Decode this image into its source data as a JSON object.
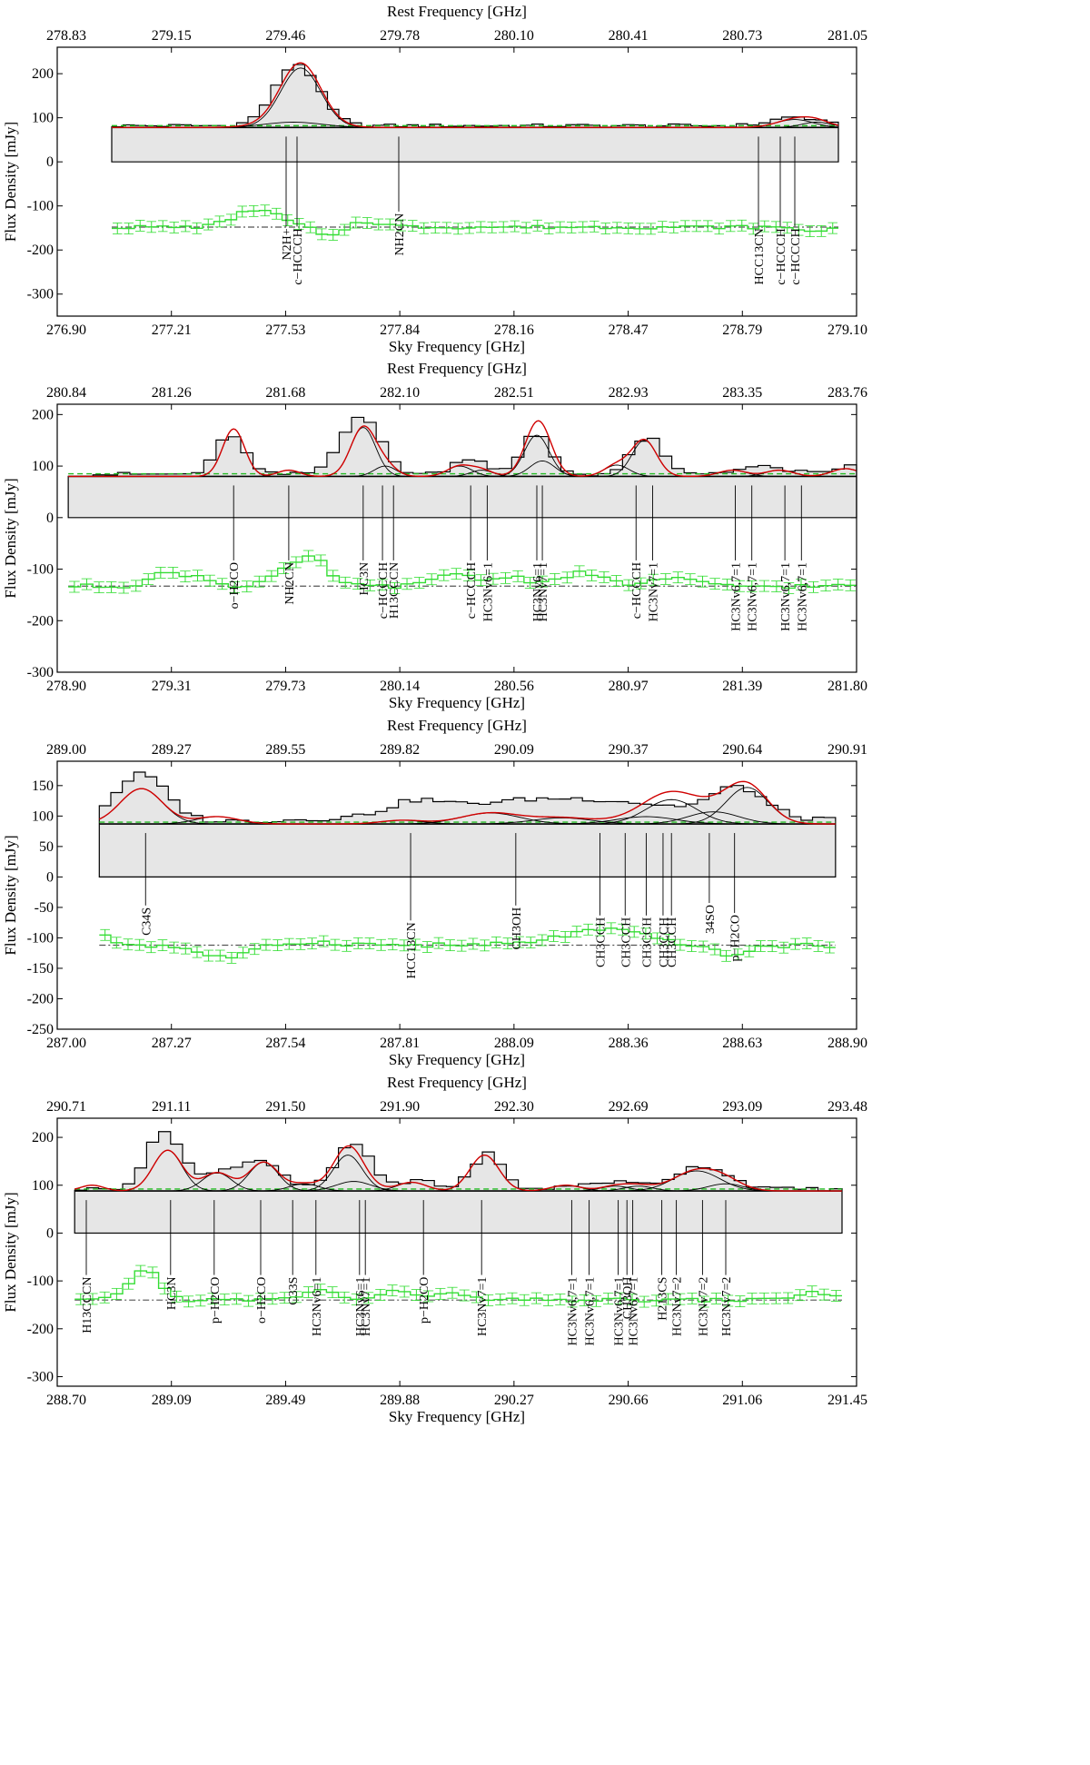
{
  "figure": {
    "top_axis_label": "Rest Frequency [GHz]",
    "bottom_axis_label": "Sky Frequency [GHz]",
    "y_axis_label": "Flux Density [mJy]"
  },
  "colors": {
    "observed": "#000000",
    "fill": "#e6e6e6",
    "total_model": "#d00000",
    "components": "#000000",
    "continuum_dashed": "#22bb22",
    "residuals": "#33dd33",
    "zero_line": "#555555",
    "markers": "#000000"
  },
  "chart_data": [
    {
      "type": "line",
      "title": "",
      "rest_ticks": [
        "278.83",
        "279.15",
        "279.46",
        "279.78",
        "280.10",
        "280.41",
        "280.73",
        "281.05"
      ],
      "sky_ticks": [
        "276.90",
        "277.21",
        "277.53",
        "277.84",
        "278.16",
        "278.47",
        "278.79",
        "279.10"
      ],
      "xlim": [
        276.9,
        279.1
      ],
      "ylim": [
        -350,
        260
      ],
      "yticks": [
        200,
        100,
        0,
        -100,
        -200,
        -300
      ],
      "data_range": [
        277.05,
        279.05
      ],
      "continuum": 78,
      "continuum_dashed": 82,
      "residual_level": -148,
      "components": [
        {
          "center": 277.57,
          "amp": 135,
          "sigma": 0.055
        },
        {
          "center": 277.55,
          "amp": 12,
          "sigma": 0.08
        },
        {
          "center": 278.93,
          "amp": 18,
          "sigma": 0.05
        },
        {
          "center": 278.99,
          "amp": 12,
          "sigma": 0.04
        }
      ],
      "observed_peaks": [
        {
          "center": 277.56,
          "amp": 140,
          "sigma": 0.06
        },
        {
          "center": 278.93,
          "amp": 20,
          "sigma": 0.06
        }
      ],
      "residual_bumps": [
        {
          "center": 277.45,
          "amp": 40,
          "sigma": 0.06
        },
        {
          "center": 277.65,
          "amp": -25,
          "sigma": 0.03
        },
        {
          "center": 277.75,
          "amp": 12,
          "sigma": 0.05
        },
        {
          "center": 278.98,
          "amp": -8,
          "sigma": 0.05
        }
      ],
      "lines": [
        {
          "freq": 277.53,
          "label": "N2H+",
          "len": 180
        },
        {
          "freq": 277.56,
          "label": "c−HCCCH",
          "len": 180
        },
        {
          "freq": 277.84,
          "label": "NH2CN",
          "len": 150
        },
        {
          "freq": 278.83,
          "label": "HCC13CN",
          "len": 180
        },
        {
          "freq": 278.89,
          "label": "c−HCCCH",
          "len": 180
        },
        {
          "freq": 278.93,
          "label": "c−HCCCH",
          "len": 180
        }
      ]
    },
    {
      "type": "line",
      "title": "",
      "rest_ticks": [
        "280.84",
        "281.26",
        "281.68",
        "282.10",
        "282.51",
        "282.93",
        "283.35",
        "283.76"
      ],
      "sky_ticks": [
        "278.90",
        "279.31",
        "279.73",
        "280.14",
        "280.56",
        "280.97",
        "281.39",
        "281.80"
      ],
      "xlim": [
        278.9,
        281.8
      ],
      "ylim": [
        -300,
        220
      ],
      "yticks": [
        200,
        100,
        0,
        -100,
        -200,
        -300
      ],
      "data_range": [
        278.94,
        281.8
      ],
      "continuum": 80,
      "continuum_dashed": 85,
      "residual_level": -133,
      "components": [
        {
          "center": 279.54,
          "amp": 92,
          "sigma": 0.04
        },
        {
          "center": 279.74,
          "amp": 12,
          "sigma": 0.04
        },
        {
          "center": 280.01,
          "amp": 95,
          "sigma": 0.045
        },
        {
          "center": 280.09,
          "amp": 20,
          "sigma": 0.04
        },
        {
          "center": 280.36,
          "amp": 20,
          "sigma": 0.045
        },
        {
          "center": 280.44,
          "amp": 12,
          "sigma": 0.04
        },
        {
          "center": 280.64,
          "amp": 80,
          "sigma": 0.045
        },
        {
          "center": 280.66,
          "amp": 30,
          "sigma": 0.045
        },
        {
          "center": 280.93,
          "amp": 22,
          "sigma": 0.045
        },
        {
          "center": 281.03,
          "amp": 70,
          "sigma": 0.045
        },
        {
          "center": 281.35,
          "amp": 12,
          "sigma": 0.05
        },
        {
          "center": 281.52,
          "amp": 12,
          "sigma": 0.05
        },
        {
          "center": 281.76,
          "amp": 15,
          "sigma": 0.05
        }
      ],
      "observed_peaks": [
        {
          "center": 279.53,
          "amp": 78,
          "sigma": 0.05
        },
        {
          "center": 280.0,
          "amp": 115,
          "sigma": 0.07
        },
        {
          "center": 280.4,
          "amp": 32,
          "sigma": 0.06
        },
        {
          "center": 280.64,
          "amp": 80,
          "sigma": 0.05
        },
        {
          "center": 281.04,
          "amp": 72,
          "sigma": 0.055
        },
        {
          "center": 281.45,
          "amp": 14,
          "sigma": 0.1
        },
        {
          "center": 281.78,
          "amp": 20,
          "sigma": 0.04
        }
      ],
      "residual_bumps": [
        {
          "center": 279.3,
          "amp": 25,
          "sigma": 0.06
        },
        {
          "center": 279.42,
          "amp": 15,
          "sigma": 0.05
        },
        {
          "center": 279.82,
          "amp": 55,
          "sigma": 0.06
        },
        {
          "center": 279.7,
          "amp": 18,
          "sigma": 0.05
        },
        {
          "center": 280.35,
          "amp": 25,
          "sigma": 0.07
        },
        {
          "center": 280.55,
          "amp": 20,
          "sigma": 0.05
        },
        {
          "center": 280.8,
          "amp": 25,
          "sigma": 0.08
        },
        {
          "center": 281.13,
          "amp": 15,
          "sigma": 0.08
        }
      ],
      "lines": [
        {
          "freq": 279.54,
          "label": "o−H2CO",
          "len": 150
        },
        {
          "freq": 279.74,
          "label": "NH2CN",
          "len": 150
        },
        {
          "freq": 280.01,
          "label": "HC3N",
          "len": 150
        },
        {
          "freq": 280.08,
          "label": "c−HCCCH",
          "len": 150
        },
        {
          "freq": 280.12,
          "label": "H13CCCN",
          "len": 150
        },
        {
          "freq": 280.4,
          "label": "c−HCCCH",
          "len": 150
        },
        {
          "freq": 280.46,
          "label": "HC3Nv6=1",
          "len": 150
        },
        {
          "freq": 280.64,
          "label": "HC3Nv6=1",
          "len": 150
        },
        {
          "freq": 280.66,
          "label": "HC3Nv7=1",
          "len": 150
        },
        {
          "freq": 281.0,
          "label": "c−HCCCH",
          "len": 150
        },
        {
          "freq": 281.06,
          "label": "HC3Nv7=1",
          "len": 150
        },
        {
          "freq": 281.36,
          "label": "HC3Nv6,7=1",
          "len": 150
        },
        {
          "freq": 281.42,
          "label": "HC3Nv6,7=1",
          "len": 150
        },
        {
          "freq": 281.54,
          "label": "HC3Nv6,7=1",
          "len": 150
        },
        {
          "freq": 281.6,
          "label": "HC3Nv6,7=1",
          "len": 150
        }
      ]
    },
    {
      "type": "line",
      "title": "",
      "rest_ticks": [
        "289.00",
        "289.27",
        "289.55",
        "289.82",
        "290.09",
        "290.37",
        "290.64",
        "290.91"
      ],
      "sky_ticks": [
        "287.00",
        "287.27",
        "287.54",
        "287.81",
        "288.09",
        "288.36",
        "288.63",
        "288.90"
      ],
      "xlim": [
        287.0,
        288.9
      ],
      "ylim": [
        -250,
        190
      ],
      "yticks": [
        150,
        100,
        50,
        0,
        -50,
        -100,
        -150,
        -200,
        -250
      ],
      "data_range": [
        287.1,
        288.85
      ],
      "continuum": 87,
      "continuum_dashed": 90,
      "residual_level": -112,
      "components": [
        {
          "center": 287.2,
          "amp": 58,
          "sigma": 0.05
        },
        {
          "center": 287.38,
          "amp": 12,
          "sigma": 0.05
        },
        {
          "center": 288.03,
          "amp": 18,
          "sigma": 0.07
        },
        {
          "center": 288.2,
          "amp": 10,
          "sigma": 0.07
        },
        {
          "center": 288.4,
          "amp": 12,
          "sigma": 0.07
        },
        {
          "center": 288.46,
          "amp": 40,
          "sigma": 0.06
        },
        {
          "center": 288.56,
          "amp": 20,
          "sigma": 0.06
        },
        {
          "center": 288.64,
          "amp": 60,
          "sigma": 0.05
        },
        {
          "center": 287.82,
          "amp": 6,
          "sigma": 0.05
        }
      ],
      "observed_peaks": [
        {
          "center": 287.2,
          "amp": 78,
          "sigma": 0.06
        },
        {
          "center": 288.2,
          "amp": 38,
          "sigma": 0.28
        },
        {
          "center": 288.62,
          "amp": 45,
          "sigma": 0.06
        },
        {
          "center": 287.85,
          "amp": 18,
          "sigma": 0.06
        }
      ],
      "residual_bumps": [
        {
          "center": 287.05,
          "amp": 30,
          "sigma": 0.05
        },
        {
          "center": 287.4,
          "amp": -20,
          "sigma": 0.06
        },
        {
          "center": 287.6,
          "amp": 5,
          "sigma": 0.08
        },
        {
          "center": 288.3,
          "amp": 25,
          "sigma": 0.1
        },
        {
          "center": 288.6,
          "amp": -15,
          "sigma": 0.05
        }
      ],
      "lines": [
        {
          "freq": 287.21,
          "label": "C34S",
          "len": 145
        },
        {
          "freq": 287.84,
          "label": "HCC13CN",
          "len": 175
        },
        {
          "freq": 288.09,
          "label": "CH3OH",
          "len": 145
        },
        {
          "freq": 288.29,
          "label": "CH3CCH",
          "len": 165
        },
        {
          "freq": 288.35,
          "label": "CH3CCH",
          "len": 165
        },
        {
          "freq": 288.4,
          "label": "CH3CCH",
          "len": 165
        },
        {
          "freq": 288.44,
          "label": "CH3CCH",
          "len": 165
        },
        {
          "freq": 288.46,
          "label": "CH3CCH",
          "len": 165
        },
        {
          "freq": 288.55,
          "label": "34SO",
          "len": 140
        },
        {
          "freq": 288.61,
          "label": "p−H2CO",
          "len": 160
        }
      ]
    },
    {
      "type": "line",
      "title": "",
      "rest_ticks": [
        "290.71",
        "291.11",
        "291.50",
        "291.90",
        "292.30",
        "292.69",
        "293.09",
        "293.48"
      ],
      "sky_ticks": [
        "288.70",
        "289.09",
        "289.49",
        "289.88",
        "290.27",
        "290.66",
        "291.06",
        "291.45"
      ],
      "xlim": [
        288.7,
        291.45
      ],
      "ylim": [
        -320,
        240
      ],
      "yticks": [
        200,
        100,
        0,
        -100,
        -200,
        -300
      ],
      "data_range": [
        288.76,
        291.4
      ],
      "continuum": 88,
      "continuum_dashed": 92,
      "residual_level": -140,
      "components": [
        {
          "center": 288.82,
          "amp": 12,
          "sigma": 0.04
        },
        {
          "center": 289.08,
          "amp": 85,
          "sigma": 0.05
        },
        {
          "center": 289.25,
          "amp": 38,
          "sigma": 0.05
        },
        {
          "center": 289.41,
          "amp": 60,
          "sigma": 0.05
        },
        {
          "center": 289.55,
          "amp": 15,
          "sigma": 0.05
        },
        {
          "center": 289.7,
          "amp": 75,
          "sigma": 0.05
        },
        {
          "center": 289.72,
          "amp": 20,
          "sigma": 0.06
        },
        {
          "center": 289.92,
          "amp": 18,
          "sigma": 0.05
        },
        {
          "center": 290.17,
          "amp": 75,
          "sigma": 0.05
        },
        {
          "center": 290.45,
          "amp": 12,
          "sigma": 0.05
        },
        {
          "center": 290.62,
          "amp": 10,
          "sigma": 0.05
        },
        {
          "center": 290.7,
          "amp": 10,
          "sigma": 0.05
        },
        {
          "center": 290.9,
          "amp": 42,
          "sigma": 0.08
        },
        {
          "center": 291.0,
          "amp": 15,
          "sigma": 0.06
        }
      ],
      "observed_peaks": [
        {
          "center": 289.07,
          "amp": 120,
          "sigma": 0.06
        },
        {
          "center": 289.3,
          "amp": 40,
          "sigma": 0.08
        },
        {
          "center": 289.42,
          "amp": 45,
          "sigma": 0.06
        },
        {
          "center": 289.72,
          "amp": 95,
          "sigma": 0.06
        },
        {
          "center": 289.95,
          "amp": 20,
          "sigma": 0.05
        },
        {
          "center": 290.18,
          "amp": 75,
          "sigma": 0.05
        },
        {
          "center": 290.6,
          "amp": 15,
          "sigma": 0.1
        },
        {
          "center": 290.92,
          "amp": 48,
          "sigma": 0.09
        }
      ],
      "residual_bumps": [
        {
          "center": 289.0,
          "amp": 65,
          "sigma": 0.05
        },
        {
          "center": 289.6,
          "amp": 20,
          "sigma": 0.06
        },
        {
          "center": 289.88,
          "amp": 18,
          "sigma": 0.06
        },
        {
          "center": 290.05,
          "amp": 12,
          "sigma": 0.06
        },
        {
          "center": 291.3,
          "amp": 15,
          "sigma": 0.07
        }
      ],
      "lines": [
        {
          "freq": 288.8,
          "label": "H13CCCN",
          "len": 150
        },
        {
          "freq": 289.09,
          "label": "HC3N",
          "len": 150
        },
        {
          "freq": 289.24,
          "label": "p−H2CO",
          "len": 150
        },
        {
          "freq": 289.4,
          "label": "o−H2CO",
          "len": 150
        },
        {
          "freq": 289.51,
          "label": "C33S",
          "len": 150
        },
        {
          "freq": 289.59,
          "label": "HC3Nv6=1",
          "len": 150
        },
        {
          "freq": 289.74,
          "label": "HC3Nv6=1",
          "len": 150
        },
        {
          "freq": 289.76,
          "label": "HC3Nv7=1",
          "len": 150
        },
        {
          "freq": 289.96,
          "label": "p−H2CO",
          "len": 150
        },
        {
          "freq": 290.16,
          "label": "HC3Nv7=1",
          "len": 150
        },
        {
          "freq": 290.47,
          "label": "HC3Nv6,7=1",
          "len": 150
        },
        {
          "freq": 290.53,
          "label": "HC3Nv6,7=1",
          "len": 150
        },
        {
          "freq": 290.63,
          "label": "HC3Nv6,7=1",
          "len": 150
        },
        {
          "freq": 290.66,
          "label": "CH3OH",
          "len": 150
        },
        {
          "freq": 290.68,
          "label": "HC3Nv6,7=1",
          "len": 150
        },
        {
          "freq": 290.78,
          "label": "H213CS",
          "len": 150
        },
        {
          "freq": 290.83,
          "label": "HC3Nv7=2",
          "len": 150
        },
        {
          "freq": 290.92,
          "label": "HC3Nv7=2",
          "len": 150
        },
        {
          "freq": 291.0,
          "label": "HC3Nv7=2",
          "len": 150
        }
      ]
    }
  ]
}
